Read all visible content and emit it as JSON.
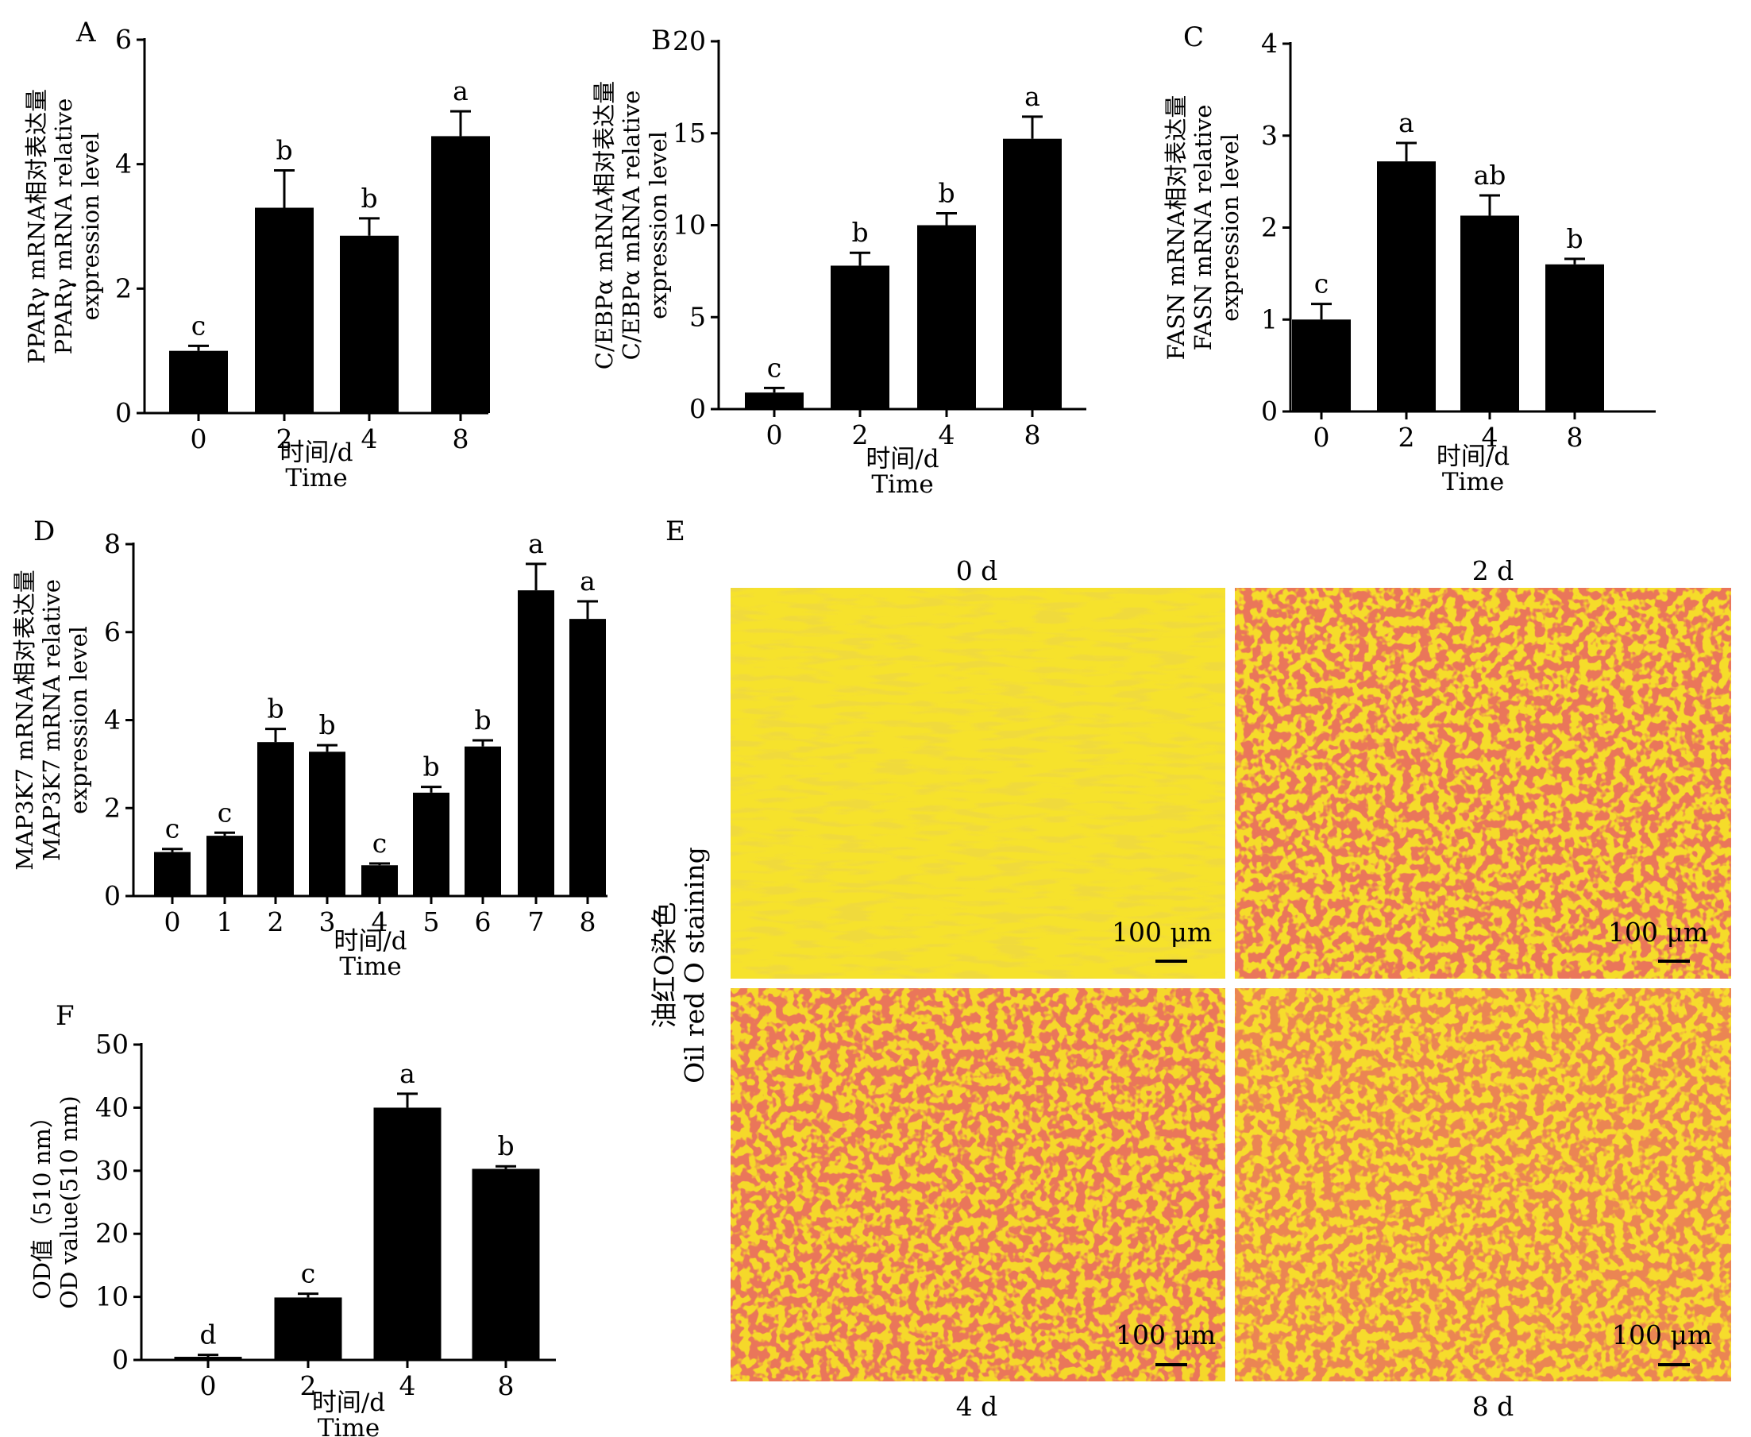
{
  "chart_data": [
    {
      "panel": "A",
      "type": "bar",
      "categories": [
        "0",
        "2",
        "4",
        "8"
      ],
      "values": [
        1.0,
        3.3,
        2.85,
        4.45
      ],
      "errors": [
        0.08,
        0.6,
        0.28,
        0.4
      ],
      "sig": [
        "c",
        "b",
        "b",
        "a"
      ],
      "ylim": [
        0,
        6
      ],
      "yticks": [
        0,
        2,
        4,
        6
      ],
      "ylabel": [
        "PPARγ mRNA相对表达量",
        "PPARγ mRNA relative",
        "expression level"
      ],
      "xlabel": [
        "时间/d",
        "Time"
      ]
    },
    {
      "panel": "B",
      "type": "bar",
      "categories": [
        "0",
        "2",
        "4",
        "8"
      ],
      "values": [
        0.9,
        7.8,
        10.0,
        14.7
      ],
      "errors": [
        0.25,
        0.7,
        0.65,
        1.2
      ],
      "sig": [
        "c",
        "b",
        "b",
        "a"
      ],
      "ylim": [
        0,
        20
      ],
      "yticks": [
        0,
        5,
        10,
        15,
        20
      ],
      "ylabel": [
        "C/EBPα mRNA相对表达量",
        "C/EBPα mRNA relative",
        "expression level"
      ],
      "xlabel": [
        "时间/d",
        "Time"
      ]
    },
    {
      "panel": "C",
      "type": "bar",
      "categories": [
        "0",
        "2",
        "4",
        "8"
      ],
      "values": [
        1.0,
        2.72,
        2.13,
        1.6
      ],
      "errors": [
        0.17,
        0.2,
        0.22,
        0.06
      ],
      "sig": [
        "c",
        "a",
        "ab",
        "b"
      ],
      "ylim": [
        0,
        4
      ],
      "yticks": [
        0,
        1,
        2,
        3,
        4
      ],
      "ylabel": [
        "FASN mRNA相对表达量",
        "FASN mRNA relative",
        "expression level"
      ],
      "xlabel": [
        "时间/d",
        "Time"
      ]
    },
    {
      "panel": "D",
      "type": "bar",
      "categories": [
        "0",
        "1",
        "2",
        "3",
        "4",
        "5",
        "6",
        "7",
        "8"
      ],
      "values": [
        1.0,
        1.37,
        3.5,
        3.28,
        0.7,
        2.35,
        3.4,
        6.95,
        6.3
      ],
      "errors": [
        0.07,
        0.07,
        0.3,
        0.15,
        0.04,
        0.13,
        0.14,
        0.6,
        0.4
      ],
      "sig": [
        "c",
        "c",
        "b",
        "b",
        "c",
        "b",
        "b",
        "a",
        "a"
      ],
      "ylim": [
        0,
        8
      ],
      "yticks": [
        0,
        2,
        4,
        6,
        8
      ],
      "ylabel": [
        "MAP3K7 mRNA相对表达量",
        "MAP3K7 mRNA relative",
        "expression level"
      ],
      "xlabel": [
        "时间/d",
        "Time"
      ]
    },
    {
      "panel": "F",
      "type": "bar",
      "categories": [
        "0",
        "2",
        "4",
        "8"
      ],
      "values": [
        0.5,
        9.9,
        40.0,
        30.3
      ],
      "errors": [
        0.3,
        0.6,
        2.2,
        0.4
      ],
      "sig": [
        "d",
        "c",
        "a",
        "b"
      ],
      "ylim": [
        0,
        50
      ],
      "yticks": [
        0,
        10,
        20,
        30,
        40,
        50
      ],
      "ylabel": [
        "OD值（510 nm）",
        "OD value(510 nm)"
      ],
      "xlabel": [
        "时间/d",
        "Time"
      ]
    }
  ],
  "panel_e": {
    "letter": "E",
    "side_label": [
      "油红O染色",
      "Oil red O staining"
    ],
    "images": [
      {
        "label": "0 d",
        "scale": "100 μm"
      },
      {
        "label": "2 d",
        "scale": "100 μm"
      },
      {
        "label": "4 d",
        "scale": "100 μm"
      },
      {
        "label": "8 d",
        "scale": "100 μm"
      }
    ]
  }
}
